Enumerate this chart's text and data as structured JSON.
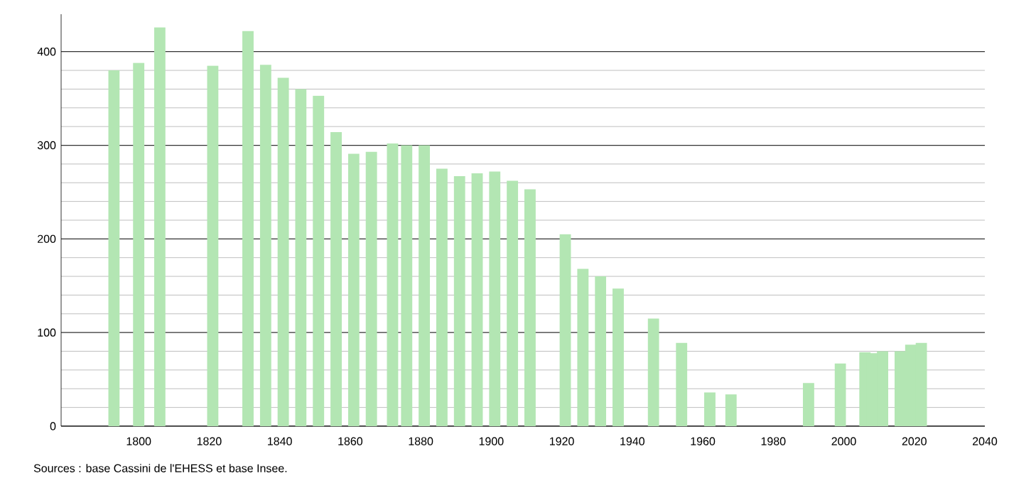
{
  "chart_data": {
    "type": "bar",
    "x": [
      1793,
      1800,
      1806,
      1821,
      1831,
      1836,
      1841,
      1846,
      1851,
      1856,
      1861,
      1866,
      1872,
      1876,
      1881,
      1886,
      1891,
      1896,
      1901,
      1906,
      1911,
      1921,
      1926,
      1931,
      1936,
      1946,
      1954,
      1962,
      1968,
      1990,
      1999,
      2006,
      2008,
      2011,
      2016,
      2019,
      2022
    ],
    "values": [
      380,
      388,
      426,
      385,
      422,
      386,
      372,
      360,
      353,
      314,
      291,
      293,
      302,
      300,
      300,
      275,
      267,
      270,
      272,
      262,
      253,
      205,
      168,
      160,
      147,
      115,
      89,
      36,
      34,
      46,
      67,
      79,
      78,
      80,
      80,
      87,
      89
    ],
    "color": "#b3e6b3",
    "xlim": [
      1778,
      2040
    ],
    "xticks": [
      1800,
      1820,
      1840,
      1860,
      1880,
      1900,
      1920,
      1940,
      1960,
      1980,
      2000,
      2020,
      2040
    ],
    "ylim": [
      0,
      440
    ],
    "yticks": [
      0,
      100,
      200,
      300,
      400
    ],
    "grid": "y",
    "annotations": [
      "Sources : base Cassini de l'EHESS et base Insee."
    ]
  }
}
